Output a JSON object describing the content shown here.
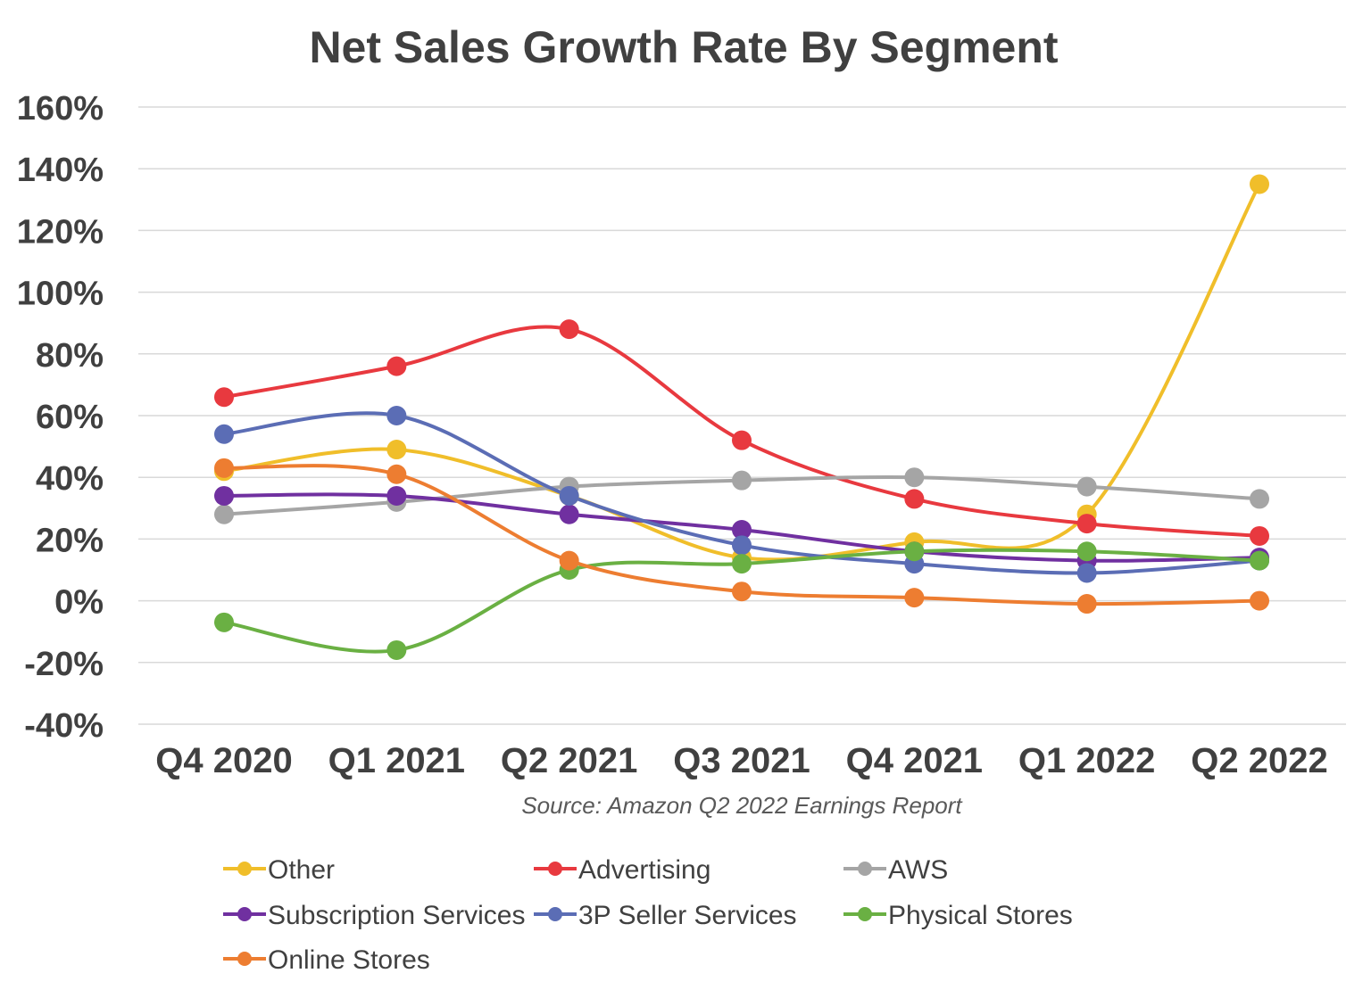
{
  "chart_data": {
    "type": "line",
    "title": "Net Sales Growth Rate By Segment",
    "source": "Source: Amazon Q2 2022 Earnings Report",
    "categories": [
      "Q4 2020",
      "Q1 2021",
      "Q2 2021",
      "Q3 2021",
      "Q4 2021",
      "Q1 2022",
      "Q2 2022"
    ],
    "ylim": [
      -40,
      160
    ],
    "yticks": [
      -40,
      -20,
      0,
      20,
      40,
      60,
      80,
      100,
      120,
      140,
      160
    ],
    "ytick_labels": [
      "-40%",
      "-20%",
      "0%",
      "20%",
      "40%",
      "60%",
      "80%",
      "100%",
      "120%",
      "140%",
      "160%"
    ],
    "y_unit": "%",
    "grid": true,
    "smooth": true,
    "legend_position": "bottom",
    "series": [
      {
        "name": "Other",
        "color": "#F0BE2A",
        "values": [
          42,
          49,
          34,
          14,
          19,
          28,
          135
        ]
      },
      {
        "name": "Advertising",
        "color": "#E8393F",
        "values": [
          66,
          76,
          88,
          52,
          33,
          25,
          21
        ]
      },
      {
        "name": "AWS",
        "color": "#A5A5A5",
        "values": [
          28,
          32,
          37,
          39,
          40,
          37,
          33
        ]
      },
      {
        "name": "Subscription Services",
        "color": "#7030A0",
        "values": [
          34,
          34,
          28,
          23,
          16,
          13,
          14
        ]
      },
      {
        "name": "3P Seller Services",
        "color": "#5B6DB5",
        "values": [
          54,
          60,
          34,
          18,
          12,
          9,
          13
        ]
      },
      {
        "name": "Physical Stores",
        "color": "#6AB043",
        "values": [
          -7,
          -16,
          10,
          12,
          16,
          16,
          13
        ]
      },
      {
        "name": "Online Stores",
        "color": "#ED7D31",
        "values": [
          43,
          41,
          13,
          3,
          1,
          -1,
          0
        ]
      }
    ]
  }
}
